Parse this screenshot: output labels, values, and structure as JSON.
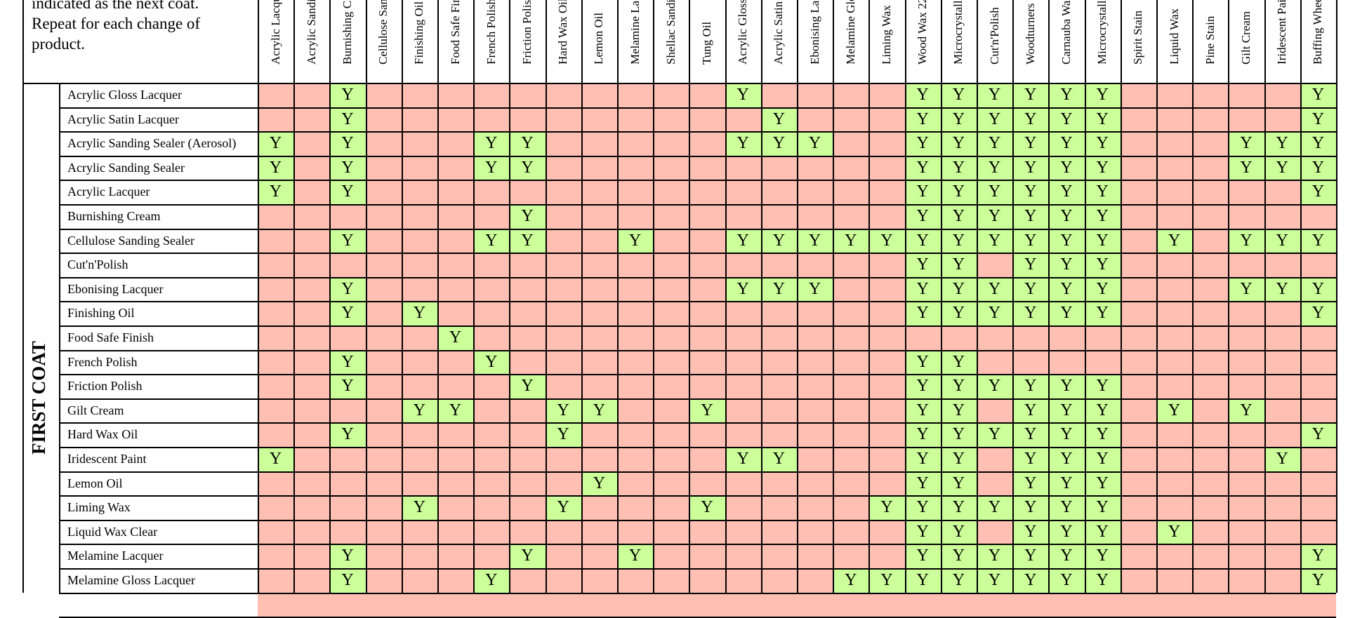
{
  "intro_text": "indicated as the next coat. Repeat for each change of product.",
  "side_label": "FIRST COAT",
  "colors": {
    "yes": "#ccff99",
    "no": "#ffbfb3"
  },
  "columns": [
    "Acrylic Lacquer",
    "Acrylic Sanding Sealer",
    "Burnishing Cream",
    "Cellulose Sanding Sealer",
    "Finishing Oil",
    "Food Safe Finish",
    "French Polish",
    "Friction Polish",
    "Hard Wax Oil",
    "Lemon Oil",
    "Melamine Lacquer",
    "Shellac Sanding Sealer",
    "Tung Oil",
    "Acrylic Gloss Lacquer",
    "Acrylic Satin Lacquer",
    "Ebonising Lacquer",
    "Melamine Gloss Lacquer",
    "Liming Wax",
    "Wood Wax 22",
    "Microcrystalline Wax",
    "Cut'n'Polish",
    "Woodturners Wax",
    "Carnauba Wax",
    "Microcrystalline Wax",
    "Spirit Stain",
    "Liquid Wax",
    "Pine Stain",
    "Gilt Cream",
    "Iridescent Paint",
    "Buffing Wheels"
  ],
  "rows": [
    {
      "label": "Acrylic Gloss Lacquer",
      "yes": [
        2,
        13,
        18,
        19,
        20,
        21,
        22,
        23,
        29
      ]
    },
    {
      "label": "Acrylic Satin Lacquer",
      "yes": [
        2,
        14,
        18,
        19,
        20,
        21,
        22,
        23,
        29
      ]
    },
    {
      "label": "Acrylic Sanding Sealer (Aerosol)",
      "yes": [
        0,
        2,
        6,
        7,
        13,
        14,
        15,
        18,
        19,
        20,
        21,
        22,
        23,
        27,
        28,
        29
      ]
    },
    {
      "label": "Acrylic Sanding Sealer",
      "yes": [
        0,
        2,
        6,
        7,
        18,
        19,
        20,
        21,
        22,
        23,
        27,
        28,
        29
      ]
    },
    {
      "label": "Acrylic Lacquer",
      "yes": [
        0,
        2,
        18,
        19,
        20,
        21,
        22,
        23,
        29
      ]
    },
    {
      "label": "Burnishing Cream",
      "yes": [
        7,
        18,
        19,
        20,
        21,
        22,
        23
      ]
    },
    {
      "label": "Cellulose Sanding Sealer",
      "yes": [
        2,
        6,
        7,
        10,
        13,
        14,
        15,
        16,
        17,
        18,
        19,
        20,
        21,
        22,
        23,
        25,
        27,
        28,
        29
      ]
    },
    {
      "label": "Cut'n'Polish",
      "yes": [
        18,
        19,
        21,
        22,
        23
      ]
    },
    {
      "label": "Ebonising Lacquer",
      "yes": [
        2,
        13,
        14,
        15,
        18,
        19,
        20,
        21,
        22,
        23,
        27,
        28,
        29
      ]
    },
    {
      "label": "Finishing Oil",
      "yes": [
        2,
        4,
        18,
        19,
        20,
        21,
        22,
        23,
        29
      ]
    },
    {
      "label": "Food Safe Finish",
      "yes": [
        5
      ]
    },
    {
      "label": "French Polish",
      "yes": [
        2,
        6,
        18,
        19
      ]
    },
    {
      "label": "Friction Polish",
      "yes": [
        2,
        7,
        18,
        19,
        20,
        21,
        22,
        23
      ]
    },
    {
      "label": "Gilt Cream",
      "yes": [
        4,
        5,
        8,
        9,
        12,
        18,
        19,
        21,
        22,
        23,
        25,
        27
      ]
    },
    {
      "label": "Hard Wax Oil",
      "yes": [
        2,
        8,
        18,
        19,
        20,
        21,
        22,
        23,
        29
      ]
    },
    {
      "label": "Iridescent Paint",
      "yes": [
        0,
        13,
        14,
        18,
        19,
        21,
        22,
        23,
        28
      ]
    },
    {
      "label": "Lemon Oil",
      "yes": [
        9,
        18,
        19,
        21,
        22,
        23
      ]
    },
    {
      "label": "Liming Wax",
      "yes": [
        4,
        8,
        12,
        17,
        18,
        19,
        20,
        21,
        22,
        23
      ]
    },
    {
      "label": "Liquid Wax Clear",
      "yes": [
        18,
        19,
        21,
        22,
        23,
        25
      ]
    },
    {
      "label": "Melamine Lacquer",
      "yes": [
        2,
        7,
        10,
        18,
        19,
        20,
        21,
        22,
        23,
        29
      ]
    },
    {
      "label": "Melamine Gloss Lacquer",
      "yes": [
        2,
        6,
        16,
        17,
        18,
        19,
        20,
        21,
        22,
        23,
        29
      ]
    },
    {
      "label": "",
      "yes": []
    }
  ],
  "yes_mark": "Y"
}
